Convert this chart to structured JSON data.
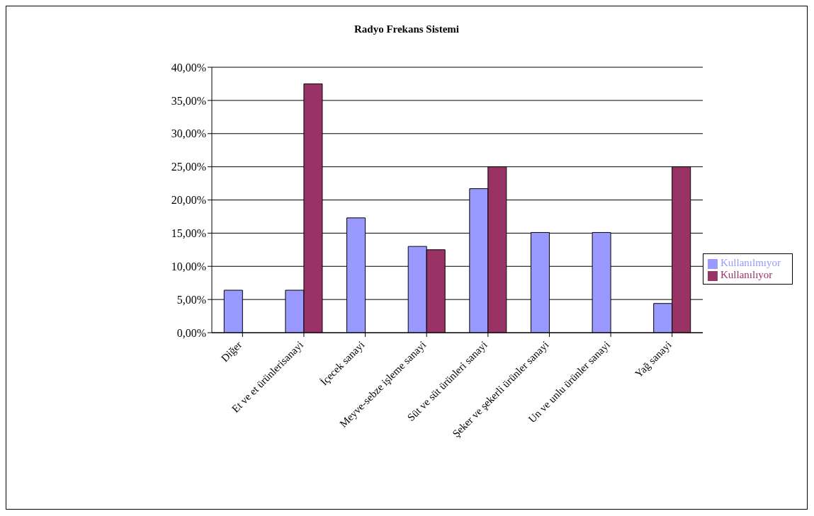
{
  "chart_data": {
    "type": "bar",
    "title": "Radyo Frekans Sistemi",
    "categories": [
      "Diğer",
      "Et ve et ürünlerisanayi",
      "İçecek sanayi",
      "Meyve-sebze işleme sanayi",
      "Süt ve  süt ürünleri sanayi",
      "Şeker ve şekerli ürünler sanayi",
      "Un ve unlu ürünler sanayi",
      "Yağ sanayi"
    ],
    "series": [
      {
        "name": "Kullanılmıyor",
        "color": "#9999ff",
        "values": [
          6.4,
          6.4,
          17.3,
          13.0,
          21.7,
          15.1,
          15.1,
          4.4
        ]
      },
      {
        "name": "Kullanılıyor",
        "color": "#993366",
        "values": [
          0,
          37.5,
          0,
          12.5,
          25.0,
          0,
          0,
          25.0
        ]
      }
    ],
    "ylim": [
      0,
      40
    ],
    "yticks": [
      {
        "value": 0,
        "label": "0,00%"
      },
      {
        "value": 5,
        "label": "5,00%"
      },
      {
        "value": 10,
        "label": "10,00%"
      },
      {
        "value": 15,
        "label": "15,00%"
      },
      {
        "value": 20,
        "label": "20,00%"
      },
      {
        "value": 25,
        "label": "25,00%"
      },
      {
        "value": 30,
        "label": "30,00%"
      },
      {
        "value": 35,
        "label": "35,00%"
      },
      {
        "value": 40,
        "label": "40,00%"
      }
    ],
    "grid": "y",
    "legend": "right"
  }
}
